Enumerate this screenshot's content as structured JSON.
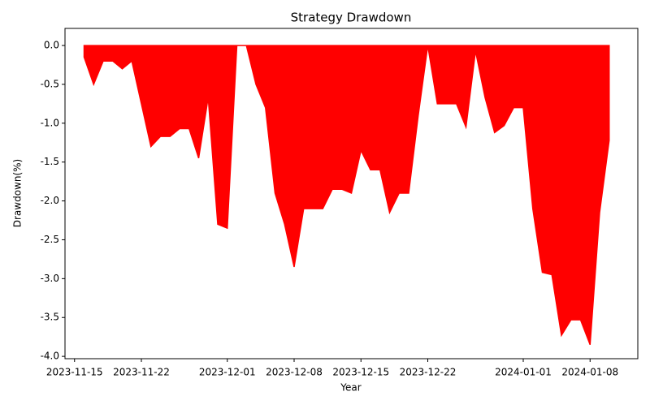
{
  "chart_data": {
    "type": "area",
    "title": "Strategy Drawdown",
    "xlabel": "Year",
    "ylabel": "Drawdown(%)",
    "x": [
      "2023-11-16",
      "2023-11-17",
      "2023-11-18",
      "2023-11-19",
      "2023-11-20",
      "2023-11-21",
      "2023-11-22",
      "2023-11-23",
      "2023-11-24",
      "2023-11-25",
      "2023-11-26",
      "2023-11-27",
      "2023-11-28",
      "2023-11-29",
      "2023-11-30",
      "2023-12-01",
      "2023-12-02",
      "2023-12-03",
      "2023-12-04",
      "2023-12-05",
      "2023-12-06",
      "2023-12-07",
      "2023-12-08",
      "2023-12-09",
      "2023-12-10",
      "2023-12-11",
      "2023-12-12",
      "2023-12-13",
      "2023-12-14",
      "2023-12-15",
      "2023-12-16",
      "2023-12-17",
      "2023-12-18",
      "2023-12-19",
      "2023-12-20",
      "2023-12-21",
      "2023-12-22",
      "2023-12-23",
      "2023-12-24",
      "2023-12-25",
      "2023-12-26",
      "2023-12-27",
      "2023-12-28",
      "2023-12-29",
      "2023-12-30",
      "2023-12-31",
      "2024-01-01",
      "2024-01-02",
      "2024-01-03",
      "2024-01-04",
      "2024-01-05",
      "2024-01-06",
      "2024-01-07",
      "2024-01-08",
      "2024-01-09",
      "2024-01-10"
    ],
    "values": [
      -0.15,
      -0.5,
      -0.2,
      -0.2,
      -0.3,
      -0.2,
      -0.75,
      -1.3,
      -1.17,
      -1.17,
      -1.07,
      -1.07,
      -1.45,
      -0.67,
      -2.3,
      -2.35,
      0,
      0,
      -0.5,
      -0.8,
      -1.9,
      -2.3,
      -2.85,
      -2.1,
      -2.1,
      -2.1,
      -1.85,
      -1.85,
      -1.9,
      -1.35,
      -1.6,
      -1.6,
      -2.15,
      -1.9,
      -1.9,
      -0.9,
      0,
      -0.75,
      -0.75,
      -0.75,
      -1.05,
      -0.07,
      -0.67,
      -1.12,
      -1.03,
      -0.8,
      -0.8,
      -2.1,
      -2.92,
      -2.95,
      -3.73,
      -3.53,
      -3.53,
      -3.85,
      -2.15,
      -1.22
    ],
    "color": "#ff0000",
    "xlim": [
      "2023-11-14",
      "2024-01-13"
    ],
    "xticks": [
      "2023-11-15",
      "2023-11-22",
      "2023-12-01",
      "2023-12-08",
      "2023-12-15",
      "2023-12-22",
      "2024-01-01",
      "2024-01-08"
    ],
    "ylim": [
      -4.03,
      0.22
    ],
    "yticks": [
      {
        "value": 0,
        "label": "0.0"
      },
      -0.5,
      {
        "value": -1,
        "label": "-1.0"
      },
      -1.5,
      {
        "value": -2,
        "label": "-2.0"
      },
      -2.5,
      {
        "value": -3,
        "label": "-3.0"
      },
      -3.5,
      {
        "value": -4,
        "label": "-4.0"
      }
    ]
  }
}
